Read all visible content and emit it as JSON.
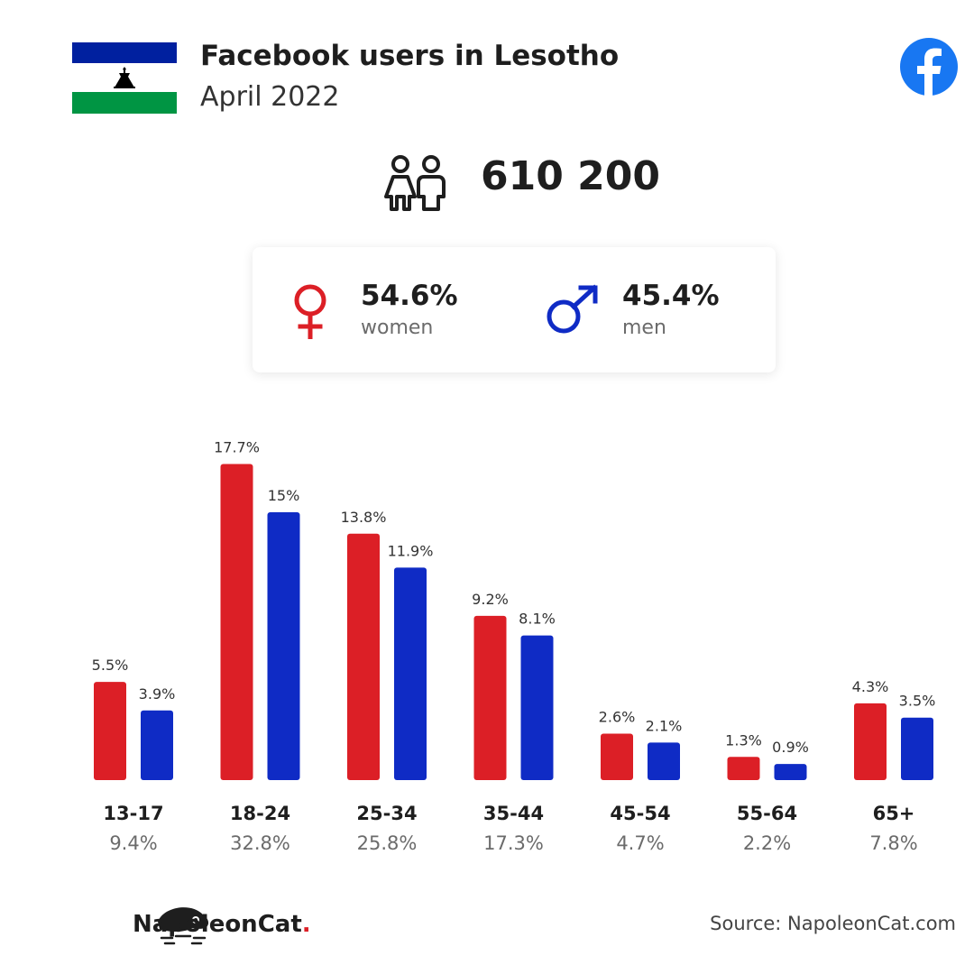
{
  "header": {
    "title": "Facebook users in Lesotho",
    "subtitle": "April 2022"
  },
  "total_users": "610 200",
  "gender": {
    "women_pct": "54.6%",
    "women_label": "women",
    "men_pct": "45.4%",
    "men_label": "men"
  },
  "colors": {
    "women": "#dc1f26",
    "men": "#0f2bc5",
    "facebook": "#1877f2",
    "flag_blue": "#00209f",
    "flag_green": "#009543"
  },
  "icons": {
    "flag": "lesotho-flag-icon",
    "facebook": "facebook-logo-icon",
    "users": "users-icon",
    "female": "female-symbol-icon",
    "male": "male-symbol-icon",
    "brand": "napoleoncat-logo-icon"
  },
  "chart_data": {
    "type": "bar",
    "categories": [
      "13-17",
      "18-24",
      "25-34",
      "35-44",
      "45-54",
      "55-64",
      "65+"
    ],
    "category_totals": [
      "9.4%",
      "32.8%",
      "25.8%",
      "17.3%",
      "4.7%",
      "2.2%",
      "7.8%"
    ],
    "series": [
      {
        "values": [
          5.5,
          17.7,
          13.8,
          9.2,
          2.6,
          1.3,
          4.3
        ],
        "labels": [
          "5.5%",
          "17.7%",
          "13.8%",
          "9.2%",
          "2.6%",
          "1.3%",
          "4.3%"
        ],
        "color": "#dc1f26"
      },
      {
        "values": [
          3.9,
          15,
          11.9,
          8.1,
          2.1,
          0.9,
          3.5
        ],
        "labels": [
          "3.9%",
          "15%",
          "11.9%",
          "8.1%",
          "2.1%",
          "0.9%",
          "3.5%"
        ],
        "color": "#0f2bc5"
      }
    ],
    "grid": false,
    "legend": "none"
  },
  "footer": {
    "brand_name": "NapoleonCat",
    "brand_dot": ".",
    "source": "Source: NapoleonCat.com"
  }
}
